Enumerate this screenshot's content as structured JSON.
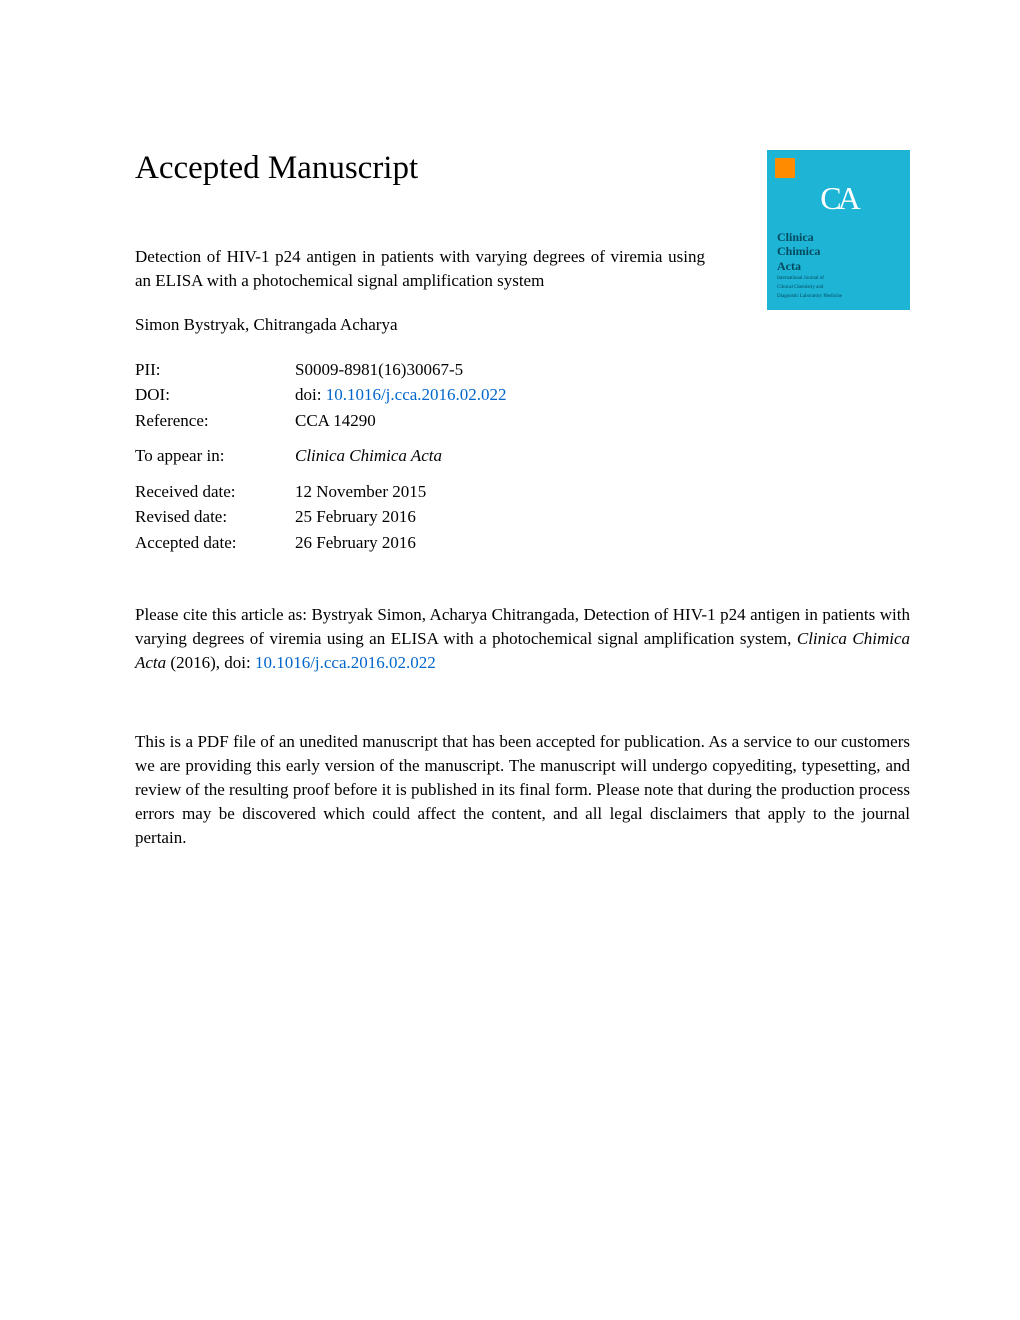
{
  "heading": "Accepted Manuscript",
  "article_title": "Detection of HIV-1 p24 antigen in patients with varying degrees of viremia using an ELISA with a photochemical signal amplification system",
  "authors": "Simon Bystryak, Chitrangada Acharya",
  "meta": {
    "pii_label": "PII:",
    "pii_value": "S0009-8981(16)30067-5",
    "doi_label": "DOI:",
    "doi_prefix": "doi: ",
    "doi_link": "10.1016/j.cca.2016.02.022",
    "ref_label": "Reference:",
    "ref_value": "CCA 14290",
    "appear_label": "To appear in:",
    "appear_value": "Clinica Chimica Acta",
    "received_label": "Received date:",
    "received_value": "12 November 2015",
    "revised_label": "Revised date:",
    "revised_value": "25 February 2016",
    "accepted_label": "Accepted date:",
    "accepted_value": "26 February 2016"
  },
  "cite_prefix": "Please cite this article as: Bystryak Simon, Acharya Chitrangada, Detection of HIV-1 p24 antigen in patients with varying degrees of viremia using an ELISA with a photochemical signal amplification system, ",
  "cite_journal": "Clinica Chimica Acta",
  "cite_year": " (2016),  doi: ",
  "cite_doi": "10.1016/j.cca.2016.02.022",
  "disclaimer": "This is a PDF file of an unedited manuscript that has been accepted for publication. As a service to our customers we are providing this early version of the manuscript. The manuscript will undergo copyediting, typesetting, and review of the resulting proof before it is published in its final form. Please note that during the production process errors may be discovered which could affect the content, and all legal disclaimers that apply to the journal pertain.",
  "cover": {
    "ca_glyph": "CA",
    "journal_name_l1": "Clinica",
    "journal_name_l2": "Chimica",
    "journal_name_l3": "Acta",
    "subtitle_l1": "International Journal of",
    "subtitle_l2": "Clinical Chemistry and",
    "subtitle_l3": "Diagnostic Laboratory Medicine",
    "bg_color": "#1db4d6",
    "logo_color": "#ff8c00"
  },
  "colors": {
    "link": "#0066cc",
    "text": "#000000",
    "background": "#ffffff"
  }
}
